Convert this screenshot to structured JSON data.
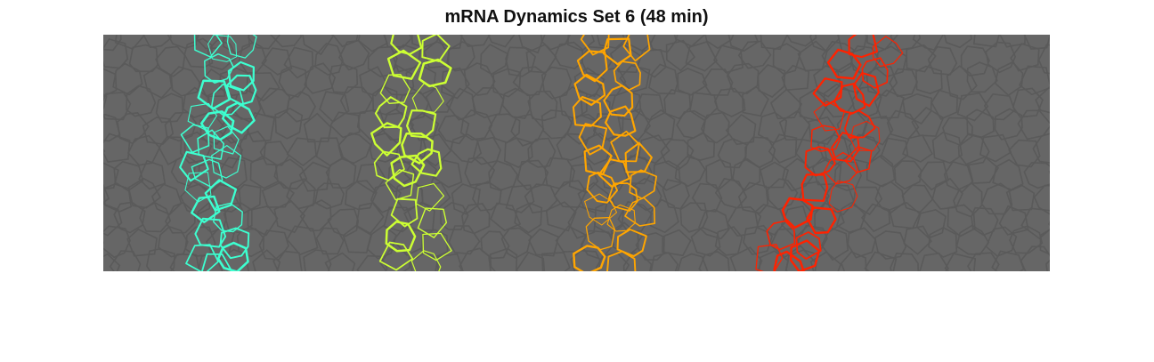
{
  "figure": {
    "title": "mRNA Dynamics Set 6 (48 min)"
  },
  "image": {
    "background_color": "#666666",
    "membrane_color": "#5a5a5a",
    "stripes": [
      {
        "name": "stripe-1",
        "color": "#3dffd0"
      },
      {
        "name": "stripe-2",
        "color": "#ccff33"
      },
      {
        "name": "stripe-3",
        "color": "#ffa500"
      },
      {
        "name": "stripe-4",
        "color": "#ff2200"
      }
    ]
  }
}
